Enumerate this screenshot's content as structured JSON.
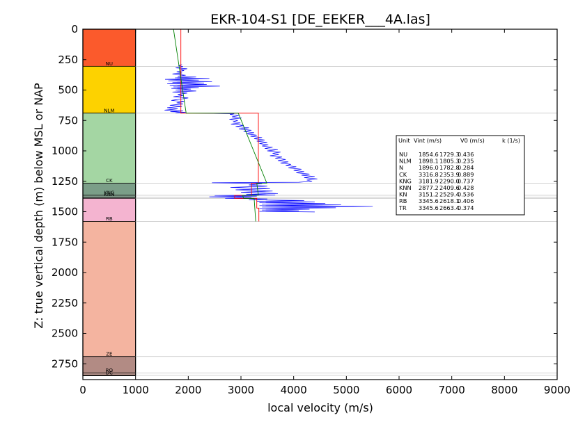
{
  "chart_data": {
    "type": "line",
    "title": "EKR-104-S1 [DE_EEKER___4A.las]",
    "xlabel": "local velocity (m/s)",
    "ylabel": "Z: true vertical depth (m) below MSL or NAP",
    "xlim": [
      0,
      9000
    ],
    "ylim": [
      2880,
      0
    ],
    "y_inverted": true,
    "xticks": [
      "0",
      "1000",
      "2000",
      "3000",
      "4000",
      "5000",
      "6000",
      "7000",
      "8000",
      "9000"
    ],
    "yticks": [
      "0",
      "250",
      "500",
      "750",
      "1000",
      "1250",
      "1500",
      "1750",
      "2000",
      "2250",
      "2500",
      "2750"
    ],
    "grid": false,
    "formation_column": {
      "x_range": [
        0,
        1000
      ],
      "layers": [
        {
          "name": "",
          "top": 0,
          "base": 305,
          "color": "#fb5a2c",
          "label": ""
        },
        {
          "name": "NU",
          "top": 305,
          "base": 690,
          "color": "#fdd200",
          "label": "NU"
        },
        {
          "name": "NLM",
          "top": 690,
          "base": 1265,
          "color": "#a4d6a3",
          "label": "NLM"
        },
        {
          "name": "CK",
          "top": 1265,
          "base": 1365,
          "color": "#7b9e88",
          "label": "CK"
        },
        {
          "name": "KNG",
          "top": 1365,
          "base": 1380,
          "color": "#8aa795",
          "label": "KNG"
        },
        {
          "name": "KNN",
          "top": 1380,
          "base": 1390,
          "color": "#9cb3a3",
          "label": "KNN"
        },
        {
          "name": "KN",
          "top": 1390,
          "base": 1580,
          "color": "#f4b4d0",
          "label": ""
        },
        {
          "name": "RB",
          "top": 1580,
          "base": 2690,
          "color": "#f4b4a0",
          "label": "RB"
        },
        {
          "name": "ZE",
          "top": 2690,
          "base": 2825,
          "color": "#b28b84",
          "label": "ZE"
        },
        {
          "name": "RO",
          "top": 2825,
          "base": 2845,
          "color": "#b9968e",
          "label": "RO"
        },
        {
          "name": "",
          "top": 2845,
          "base": 2848,
          "color": "#a8c0a8",
          "label": "DC"
        }
      ],
      "boundary_lines": [
        305,
        690,
        1265,
        1365,
        1380,
        1390,
        1580,
        2690,
        2825,
        2845
      ]
    },
    "series": [
      {
        "color": "#0000ff",
        "points": [
          [
            1880,
            290
          ],
          [
            1820,
            300
          ],
          [
            1900,
            308
          ],
          [
            1760,
            318
          ],
          [
            1980,
            325
          ],
          [
            1850,
            333
          ],
          [
            1920,
            340
          ],
          [
            1780,
            350
          ],
          [
            1880,
            360
          ],
          [
            1700,
            368
          ],
          [
            1950,
            378
          ],
          [
            1800,
            386
          ],
          [
            2150,
            393
          ],
          [
            1750,
            400
          ],
          [
            2400,
            405
          ],
          [
            1560,
            412
          ],
          [
            2200,
            418
          ],
          [
            1620,
            424
          ],
          [
            2450,
            430
          ],
          [
            1700,
            436
          ],
          [
            2300,
            442
          ],
          [
            1600,
            448
          ],
          [
            2350,
            455
          ],
          [
            1650,
            462
          ],
          [
            2600,
            468
          ],
          [
            1720,
            474
          ],
          [
            2200,
            480
          ],
          [
            1680,
            486
          ],
          [
            2050,
            492
          ],
          [
            1760,
            500
          ],
          [
            2150,
            508
          ],
          [
            1700,
            516
          ],
          [
            1980,
            525
          ],
          [
            1800,
            535
          ],
          [
            1900,
            545
          ],
          [
            1720,
            555
          ],
          [
            2000,
            565
          ],
          [
            1850,
            575
          ],
          [
            1680,
            585
          ],
          [
            1930,
            595
          ],
          [
            1780,
            605
          ],
          [
            1900,
            615
          ],
          [
            1650,
            625
          ],
          [
            1880,
            635
          ],
          [
            1600,
            645
          ],
          [
            1800,
            655
          ],
          [
            1550,
            665
          ],
          [
            1900,
            672
          ],
          [
            1660,
            678
          ],
          [
            1950,
            683
          ],
          [
            1760,
            687
          ],
          [
            2870,
            695
          ],
          [
            2790,
            700
          ],
          [
            2960,
            710
          ],
          [
            2830,
            720
          ],
          [
            3010,
            730
          ],
          [
            2780,
            740
          ],
          [
            2940,
            750
          ],
          [
            2850,
            760
          ],
          [
            2990,
            770
          ],
          [
            2810,
            780
          ],
          [
            3050,
            790
          ],
          [
            2900,
            800
          ],
          [
            3150,
            810
          ],
          [
            2960,
            820
          ],
          [
            3200,
            830
          ],
          [
            3050,
            840
          ],
          [
            3250,
            850
          ],
          [
            3100,
            860
          ],
          [
            3300,
            870
          ],
          [
            3180,
            880
          ],
          [
            3400,
            890
          ],
          [
            3250,
            900
          ],
          [
            3450,
            910
          ],
          [
            3300,
            920
          ],
          [
            3500,
            930
          ],
          [
            3350,
            940
          ],
          [
            3520,
            950
          ],
          [
            3400,
            960
          ],
          [
            3600,
            970
          ],
          [
            3450,
            980
          ],
          [
            3700,
            990
          ],
          [
            3500,
            1000
          ],
          [
            3750,
            1010
          ],
          [
            3600,
            1020
          ],
          [
            3720,
            1030
          ],
          [
            3550,
            1040
          ],
          [
            3780,
            1050
          ],
          [
            3650,
            1060
          ],
          [
            3850,
            1070
          ],
          [
            3700,
            1080
          ],
          [
            3900,
            1090
          ],
          [
            3750,
            1100
          ],
          [
            3950,
            1110
          ],
          [
            3850,
            1120
          ],
          [
            4050,
            1130
          ],
          [
            3900,
            1140
          ],
          [
            4150,
            1150
          ],
          [
            4000,
            1160
          ],
          [
            4200,
            1170
          ],
          [
            4050,
            1180
          ],
          [
            4300,
            1190
          ],
          [
            4150,
            1200
          ],
          [
            4400,
            1210
          ],
          [
            4200,
            1220
          ],
          [
            4450,
            1230
          ],
          [
            4250,
            1240
          ],
          [
            4350,
            1250
          ],
          [
            4100,
            1258
          ],
          [
            2450,
            1262
          ],
          [
            3400,
            1270
          ],
          [
            3150,
            1280
          ],
          [
            3500,
            1290
          ],
          [
            2800,
            1300
          ],
          [
            3550,
            1310
          ],
          [
            2900,
            1320
          ],
          [
            3600,
            1330
          ],
          [
            3000,
            1340
          ],
          [
            3700,
            1350
          ],
          [
            3100,
            1358
          ],
          [
            3650,
            1363
          ],
          [
            2500,
            1367
          ],
          [
            3300,
            1372
          ],
          [
            2400,
            1378
          ],
          [
            3200,
            1384
          ],
          [
            2700,
            1390
          ],
          [
            3500,
            1395
          ],
          [
            3150,
            1402
          ],
          [
            4200,
            1408
          ],
          [
            3300,
            1414
          ],
          [
            4400,
            1420
          ],
          [
            3350,
            1426
          ],
          [
            4600,
            1432
          ],
          [
            3400,
            1438
          ],
          [
            4900,
            1444
          ],
          [
            3350,
            1450
          ],
          [
            5500,
            1456
          ],
          [
            3400,
            1462
          ],
          [
            4800,
            1468
          ],
          [
            3350,
            1474
          ],
          [
            4300,
            1480
          ],
          [
            3400,
            1486
          ],
          [
            4100,
            1492
          ],
          [
            3350,
            1497
          ],
          [
            4400,
            1502
          ]
        ]
      },
      {
        "color": "#ff0000",
        "points": [
          [
            1860,
            0
          ],
          [
            1860,
            690
          ],
          [
            3330,
            690
          ],
          [
            3330,
            1265
          ],
          [
            3200,
            1265
          ],
          [
            3200,
            1365
          ],
          [
            2880,
            1365
          ],
          [
            2880,
            1390
          ],
          [
            3300,
            1390
          ],
          [
            3300,
            1470
          ],
          [
            3340,
            1470
          ],
          [
            3340,
            1580
          ]
        ]
      },
      {
        "color": "#008000",
        "points": [
          [
            1720,
            0
          ],
          [
            1960,
            690
          ],
          [
            2950,
            690
          ],
          [
            3490,
            1265
          ],
          [
            3300,
            1265
          ],
          [
            3330,
            1365
          ],
          [
            3030,
            1365
          ],
          [
            3050,
            1390
          ],
          [
            3250,
            1390
          ],
          [
            3280,
            1580
          ]
        ]
      }
    ],
    "legend": {
      "placement": "right",
      "header": [
        "Unit",
        "Vint (m/s)",
        "V0 (m/s)",
        "k (1/s)"
      ],
      "rows": [
        [
          "NU",
          "1854.6",
          "1729.3",
          "0.436"
        ],
        [
          "NLM",
          "1898.1",
          "1805.3",
          "0.235"
        ],
        [
          "N",
          "1896.0",
          "1782.8",
          "0.284"
        ],
        [
          "CK",
          "3316.8",
          "2353.9",
          "0.889"
        ],
        [
          "KNG",
          "3181.9",
          "2290.0",
          "0.737"
        ],
        [
          "KNN",
          "2877.2",
          "2409.6",
          "0.428"
        ],
        [
          "KN",
          "3151.2",
          "2529.4",
          "0.536"
        ],
        [
          "RB",
          "3345.6",
          "2618.1",
          "0.406"
        ],
        [
          "TR",
          "3345.6",
          "2663.4",
          "0.374"
        ]
      ]
    }
  }
}
